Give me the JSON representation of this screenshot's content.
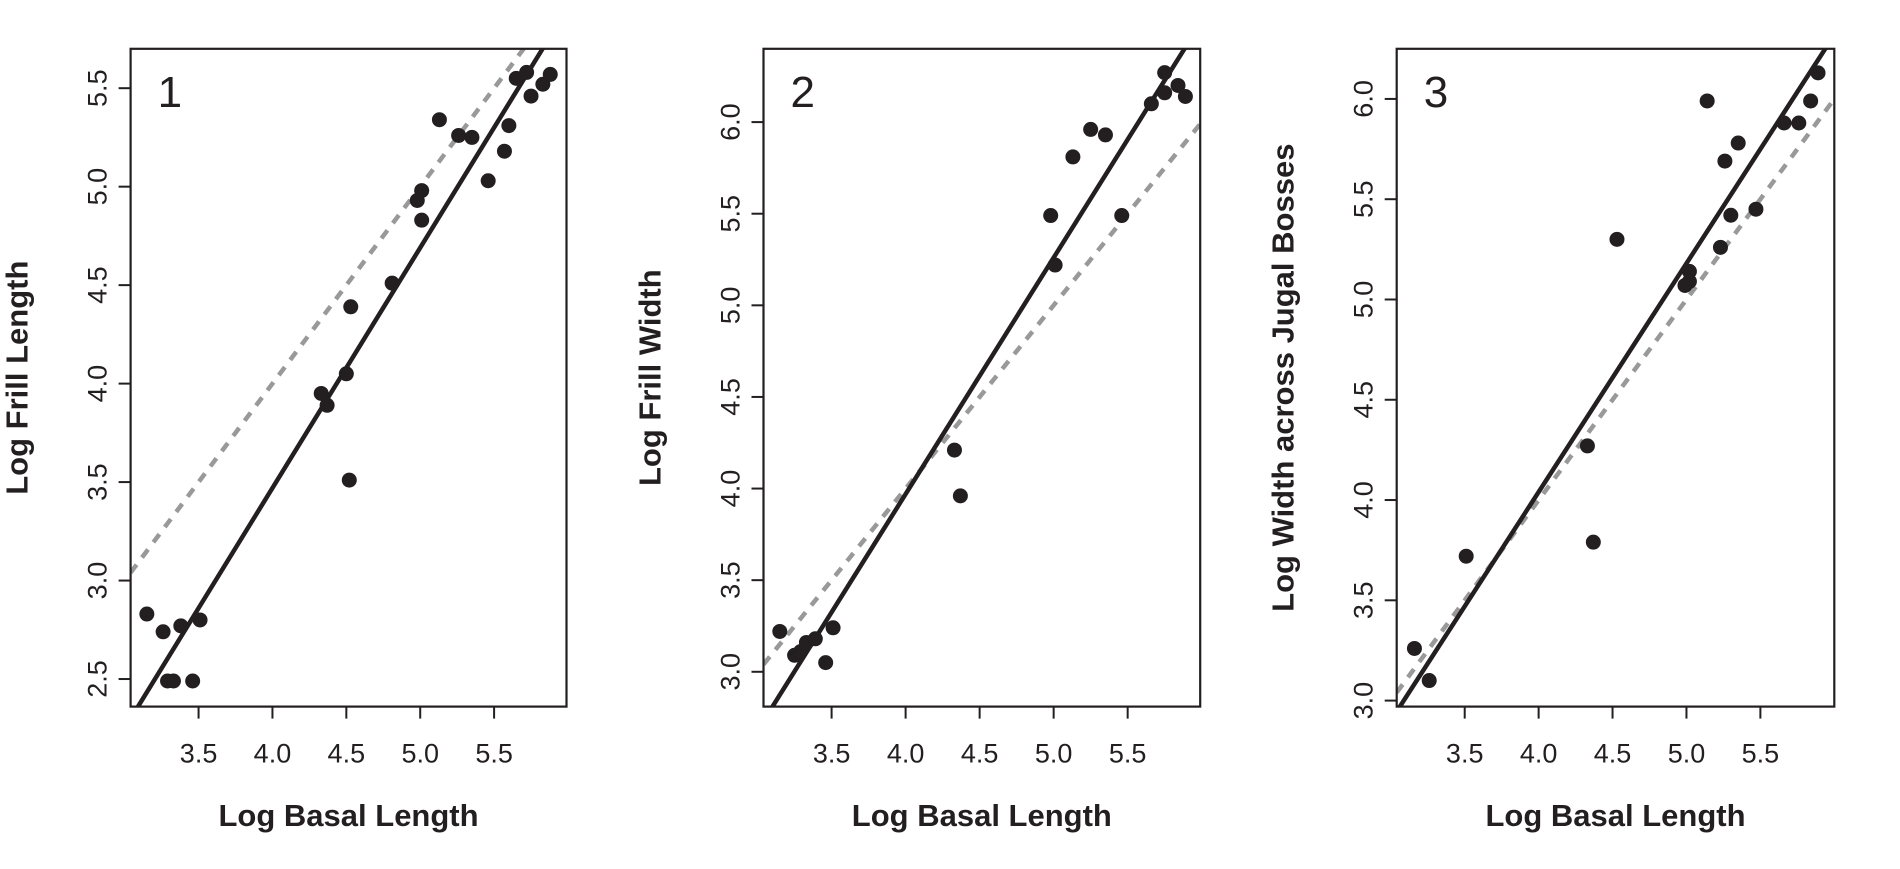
{
  "chart_data": [
    {
      "type": "scatter",
      "panel_label": "1",
      "xlabel": "Log Basal Length",
      "ylabel": "Log Frill Length",
      "xlim": [
        3.04,
        5.99
      ],
      "ylim": [
        2.36,
        5.7
      ],
      "xticks": [
        "3.5",
        "4.0",
        "4.5",
        "5.0",
        "5.5"
      ],
      "yticks": [
        "2.5",
        "3.0",
        "3.5",
        "4.0",
        "4.5",
        "5.0",
        "5.5"
      ],
      "points": [
        [
          3.15,
          2.83
        ],
        [
          3.26,
          2.74
        ],
        [
          3.38,
          2.77
        ],
        [
          3.51,
          2.8
        ],
        [
          3.29,
          2.49
        ],
        [
          3.33,
          2.49
        ],
        [
          3.46,
          2.49
        ],
        [
          4.33,
          3.95
        ],
        [
          4.37,
          3.89
        ],
        [
          4.5,
          4.05
        ],
        [
          4.53,
          4.39
        ],
        [
          4.52,
          3.51
        ],
        [
          4.81,
          4.51
        ],
        [
          4.98,
          4.93
        ],
        [
          5.01,
          4.98
        ],
        [
          5.01,
          4.83
        ],
        [
          5.13,
          5.34
        ],
        [
          5.26,
          5.26
        ],
        [
          5.35,
          5.25
        ],
        [
          5.46,
          5.03
        ],
        [
          5.57,
          5.18
        ],
        [
          5.6,
          5.31
        ],
        [
          5.65,
          5.55
        ],
        [
          5.72,
          5.58
        ],
        [
          5.75,
          5.46
        ],
        [
          5.83,
          5.52
        ],
        [
          5.88,
          5.57
        ]
      ],
      "fit_line": {
        "slope": 1.22,
        "intercept": -1.41,
        "color": "#231f20",
        "style": "solid"
      },
      "reference_line": {
        "slope": 1.0,
        "intercept": 0.0,
        "color": "#999999",
        "style": "dashed"
      }
    },
    {
      "type": "scatter",
      "panel_label": "2",
      "xlabel": "Log Basal Length",
      "ylabel": "Log Frill Width",
      "xlim": [
        3.04,
        5.99
      ],
      "ylim": [
        2.81,
        6.4
      ],
      "xticks": [
        "3.5",
        "4.0",
        "4.5",
        "5.0",
        "5.5"
      ],
      "yticks": [
        "3.0",
        "3.5",
        "4.0",
        "4.5",
        "5.0",
        "5.5",
        "6.0"
      ],
      "points": [
        [
          3.15,
          3.22
        ],
        [
          3.25,
          3.09
        ],
        [
          3.29,
          3.11
        ],
        [
          3.33,
          3.16
        ],
        [
          3.39,
          3.18
        ],
        [
          3.51,
          3.24
        ],
        [
          3.46,
          3.05
        ],
        [
          4.33,
          4.21
        ],
        [
          4.37,
          3.96
        ],
        [
          4.98,
          5.49
        ],
        [
          5.01,
          5.22
        ],
        [
          5.13,
          5.81
        ],
        [
          5.25,
          5.96
        ],
        [
          5.35,
          5.93
        ],
        [
          5.46,
          5.49
        ],
        [
          5.66,
          6.1
        ],
        [
          5.75,
          6.27
        ],
        [
          5.75,
          6.16
        ],
        [
          5.84,
          6.2
        ],
        [
          5.89,
          6.14
        ]
      ],
      "fit_line": {
        "slope": 1.29,
        "intercept": -1.19,
        "color": "#231f20",
        "style": "solid"
      },
      "reference_line": {
        "slope": 1.0,
        "intercept": 0.0,
        "color": "#999999",
        "style": "dashed"
      }
    },
    {
      "type": "scatter",
      "panel_label": "3",
      "xlabel": "Log Basal Length",
      "ylabel": "Log Width across Jugal Bosses",
      "xlim": [
        3.04,
        6.0
      ],
      "ylim": [
        2.97,
        6.25
      ],
      "xticks": [
        "3.5",
        "4.0",
        "4.5",
        "5.0",
        "5.5"
      ],
      "yticks": [
        "3.0",
        "3.5",
        "4.0",
        "4.5",
        "5.0",
        "5.5",
        "6.0"
      ],
      "points": [
        [
          3.16,
          3.26
        ],
        [
          3.26,
          3.1
        ],
        [
          3.51,
          3.72
        ],
        [
          4.33,
          4.27
        ],
        [
          4.37,
          3.79
        ],
        [
          4.53,
          5.3
        ],
        [
          4.99,
          5.07
        ],
        [
          5.02,
          5.14
        ],
        [
          5.02,
          5.09
        ],
        [
          5.14,
          5.99
        ],
        [
          5.23,
          5.26
        ],
        [
          5.26,
          5.69
        ],
        [
          5.3,
          5.42
        ],
        [
          5.35,
          5.78
        ],
        [
          5.47,
          5.45
        ],
        [
          5.66,
          5.88
        ],
        [
          5.76,
          5.88
        ],
        [
          5.84,
          5.99
        ],
        [
          5.89,
          6.13
        ]
      ],
      "fit_line": {
        "slope": 1.14,
        "intercept": -0.52,
        "color": "#231f20",
        "style": "solid"
      },
      "reference_line": {
        "slope": 1.0,
        "intercept": 0.0,
        "color": "#999999",
        "style": "dashed"
      }
    }
  ]
}
